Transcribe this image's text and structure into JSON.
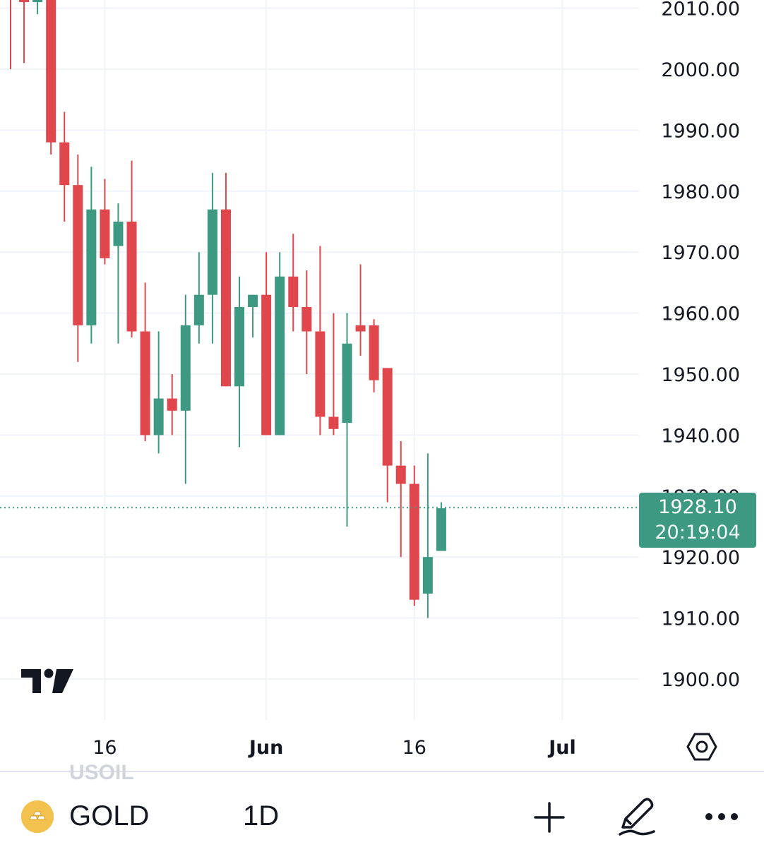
{
  "toolbar": {
    "symbol": "GOLD",
    "interval": "1D",
    "ghost_symbol": "USOIL",
    "icons": [
      "gold-bars-icon",
      "plus-icon",
      "pencil-draw-icon",
      "more-dots-icon"
    ]
  },
  "price_badge": {
    "price": "1928.10",
    "countdown": "20:19:04"
  },
  "colors": {
    "up": "#3d9981",
    "down": "#e0474c",
    "grid": "#f0f3fa",
    "text": "#131722"
  },
  "chart_data": {
    "type": "candlestick",
    "y_axis": {
      "min": 1895,
      "max": 2012,
      "ticks": [
        "2010.00",
        "2000.00",
        "1990.00",
        "1980.00",
        "1970.00",
        "1960.00",
        "1950.00",
        "1940.00",
        "1930.00",
        "1920.00",
        "1910.00",
        "1900.00"
      ]
    },
    "x_axis": {
      "ticks": [
        {
          "label": "16",
          "bold": false
        },
        {
          "label": "Jun",
          "bold": true
        },
        {
          "label": "16",
          "bold": false
        },
        {
          "label": "Jul",
          "bold": true
        }
      ]
    },
    "last_price": 1928.1,
    "candles": [
      {
        "o": 2013,
        "h": 2016,
        "l": 2000,
        "c": 2012
      },
      {
        "o": 2012,
        "h": 2014,
        "l": 2001,
        "c": 2011
      },
      {
        "o": 2011,
        "h": 2014,
        "l": 2009,
        "c": 2013
      },
      {
        "o": 2014,
        "h": 2016,
        "l": 1986,
        "c": 1988
      },
      {
        "o": 1988,
        "h": 1993,
        "l": 1975,
        "c": 1981
      },
      {
        "o": 1981,
        "h": 1986,
        "l": 1952,
        "c": 1958
      },
      {
        "o": 1958,
        "h": 1984,
        "l": 1955,
        "c": 1977
      },
      {
        "o": 1977,
        "h": 1982,
        "l": 1968,
        "c": 1969
      },
      {
        "o": 1971,
        "h": 1978,
        "l": 1955,
        "c": 1975
      },
      {
        "o": 1975,
        "h": 1985,
        "l": 1956,
        "c": 1957
      },
      {
        "o": 1957,
        "h": 1965,
        "l": 1939,
        "c": 1940
      },
      {
        "o": 1940,
        "h": 1957,
        "l": 1937,
        "c": 1946
      },
      {
        "o": 1946,
        "h": 1950,
        "l": 1940,
        "c": 1944
      },
      {
        "o": 1944,
        "h": 1963,
        "l": 1932,
        "c": 1958
      },
      {
        "o": 1958,
        "h": 1970,
        "l": 1955,
        "c": 1963
      },
      {
        "o": 1963,
        "h": 1983,
        "l": 1955,
        "c": 1977
      },
      {
        "o": 1977,
        "h": 1983,
        "l": 1948,
        "c": 1948
      },
      {
        "o": 1948,
        "h": 1966,
        "l": 1938,
        "c": 1961
      },
      {
        "o": 1961,
        "h": 1963,
        "l": 1956,
        "c": 1963
      },
      {
        "o": 1963,
        "h": 1970,
        "l": 1940,
        "c": 1940
      },
      {
        "o": 1940,
        "h": 1970,
        "l": 1940,
        "c": 1966
      },
      {
        "o": 1966,
        "h": 1973,
        "l": 1957,
        "c": 1961
      },
      {
        "o": 1961,
        "h": 1967,
        "l": 1950,
        "c": 1957
      },
      {
        "o": 1957,
        "h": 1971,
        "l": 1940,
        "c": 1943
      },
      {
        "o": 1943,
        "h": 1960,
        "l": 1940,
        "c": 1941
      },
      {
        "o": 1942,
        "h": 1960,
        "l": 1925,
        "c": 1955
      },
      {
        "o": 1958,
        "h": 1968,
        "l": 1953,
        "c": 1957
      },
      {
        "o": 1958,
        "h": 1959,
        "l": 1947,
        "c": 1949
      },
      {
        "o": 1951,
        "h": 1951,
        "l": 1929,
        "c": 1935
      },
      {
        "o": 1935,
        "h": 1939,
        "l": 1920,
        "c": 1932
      },
      {
        "o": 1932,
        "h": 1935,
        "l": 1912,
        "c": 1913
      },
      {
        "o": 1914,
        "h": 1937,
        "l": 1910,
        "c": 1920
      },
      {
        "o": 1921,
        "h": 1929,
        "l": 1921,
        "c": 1928
      }
    ]
  }
}
